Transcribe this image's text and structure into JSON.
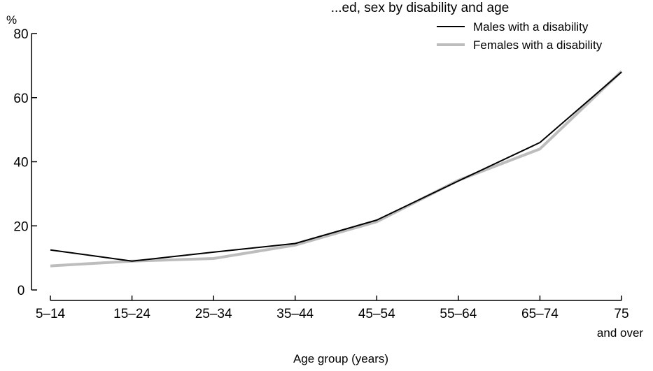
{
  "chart_data": {
    "type": "line",
    "title_fragment": "...ed, sex by disability and age",
    "y_unit": "%",
    "xlabel": "Age group (years)",
    "ylim": [
      0,
      80
    ],
    "yticks": [
      0,
      20,
      40,
      60,
      80
    ],
    "categories": [
      {
        "line1": "5–14",
        "line2": ""
      },
      {
        "line1": "15–24",
        "line2": ""
      },
      {
        "line1": "25–34",
        "line2": ""
      },
      {
        "line1": "35–44",
        "line2": ""
      },
      {
        "line1": "45–54",
        "line2": ""
      },
      {
        "line1": "55–64",
        "line2": ""
      },
      {
        "line1": "65–74",
        "line2": ""
      },
      {
        "line1": "75",
        "line2": "and over"
      }
    ],
    "series": [
      {
        "name": "Males with a disability",
        "color": "#000000",
        "values": [
          12.5,
          9,
          11.8,
          14.5,
          21.8,
          34,
          46,
          68
        ]
      },
      {
        "name": "Females with a disability",
        "color": "#bdbdbd",
        "values": [
          7.5,
          9,
          9.8,
          14,
          21.3,
          34.2,
          44,
          68.2
        ]
      }
    ],
    "legend_position": "top-right",
    "grid": false
  }
}
